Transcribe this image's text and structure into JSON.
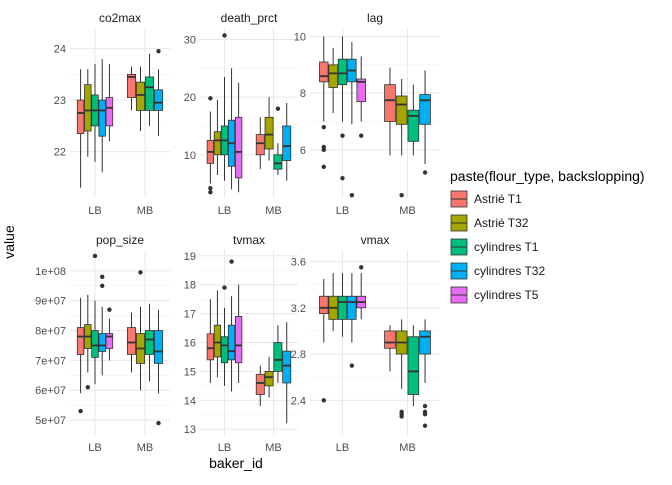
{
  "chart_data": {
    "type": "boxplot",
    "facet_layout": "2 rows x 3 columns, free y scales",
    "xlabel": "baker_id",
    "ylabel": "value",
    "legend": {
      "title": "paste(flour_type, backslopping)",
      "position": "right",
      "entries": [
        {
          "name": "Astrié T1",
          "color": "#F8766D"
        },
        {
          "name": "Astrié T32",
          "color": "#A3A500"
        },
        {
          "name": "cylindres T1",
          "color": "#00BF7D"
        },
        {
          "name": "cylindres T32",
          "color": "#00B0F6"
        },
        {
          "name": "cylindres T5",
          "color": "#E76BF3"
        }
      ]
    },
    "categories": [
      "LB",
      "MB"
    ],
    "panels": [
      {
        "title": "co2max",
        "ylim": [
          21.1,
          24.4
        ],
        "yticks": [
          {
            "v": 22,
            "label": "22"
          },
          {
            "v": 23,
            "label": "23"
          },
          {
            "v": 24,
            "label": "24"
          }
        ],
        "groups": [
          {
            "category": "LB",
            "boxes": [
              {
                "series": 0,
                "min": 21.3,
                "q1": 22.35,
                "median": 22.75,
                "q3": 23.0,
                "max": 23.6,
                "outliers": []
              },
              {
                "series": 1,
                "min": 21.9,
                "q1": 22.4,
                "median": 22.8,
                "q3": 23.3,
                "max": 23.6,
                "outliers": []
              },
              {
                "series": 2,
                "min": 21.8,
                "q1": 22.5,
                "median": 22.8,
                "q3": 23.1,
                "max": 23.7,
                "outliers": []
              },
              {
                "series": 3,
                "min": 21.6,
                "q1": 22.3,
                "median": 22.8,
                "q3": 23.0,
                "max": 23.8,
                "outliers": []
              },
              {
                "series": 4,
                "min": 22.2,
                "q1": 22.5,
                "median": 22.85,
                "q3": 23.05,
                "max": 23.7,
                "outliers": []
              }
            ]
          },
          {
            "category": "MB",
            "boxes": [
              {
                "series": 0,
                "min": 22.8,
                "q1": 23.05,
                "median": 23.45,
                "q3": 23.5,
                "max": 23.65,
                "outliers": []
              },
              {
                "series": 1,
                "min": 22.4,
                "q1": 22.8,
                "median": 23.1,
                "q3": 23.35,
                "max": 23.65,
                "outliers": []
              },
              {
                "series": 2,
                "min": 22.5,
                "q1": 22.8,
                "median": 23.25,
                "q3": 23.45,
                "max": 23.9,
                "outliers": []
              },
              {
                "series": 3,
                "min": 22.3,
                "q1": 22.8,
                "median": 22.95,
                "q3": 23.2,
                "max": 23.6,
                "outliers": [
                  23.95
                ]
              }
            ]
          }
        ]
      },
      {
        "title": "death_prct",
        "ylim": [
          2.5,
          32
        ],
        "yticks": [
          {
            "v": 10,
            "label": "10"
          },
          {
            "v": 20,
            "label": "20"
          },
          {
            "v": 30,
            "label": "30"
          }
        ],
        "groups": [
          {
            "category": "LB",
            "boxes": [
              {
                "series": 0,
                "min": 5.0,
                "q1": 8.5,
                "median": 10.5,
                "q3": 12.5,
                "max": 17.5,
                "outliers": [
                  4.2,
                  3.5,
                  19.8
                ]
              },
              {
                "series": 1,
                "min": 6.5,
                "q1": 10.0,
                "median": 12.5,
                "q3": 14.0,
                "max": 19.5,
                "outliers": []
              },
              {
                "series": 2,
                "min": 5.5,
                "q1": 10.0,
                "median": 12.5,
                "q3": 15.0,
                "max": 23.5,
                "outliers": [
                  30.7
                ]
              },
              {
                "series": 3,
                "min": 4.0,
                "q1": 8.0,
                "median": 12.0,
                "q3": 16.0,
                "max": 25.0,
                "outliers": []
              },
              {
                "series": 4,
                "min": 3.5,
                "q1": 6.0,
                "median": 10.5,
                "q3": 16.5,
                "max": 22.5,
                "outliers": []
              }
            ]
          },
          {
            "category": "MB",
            "boxes": [
              {
                "series": 0,
                "min": 7.5,
                "q1": 10.0,
                "median": 12.0,
                "q3": 13.5,
                "max": 16.5,
                "outliers": []
              },
              {
                "series": 1,
                "min": 9.0,
                "q1": 11.0,
                "median": 13.5,
                "q3": 16.5,
                "max": 20.0,
                "outliers": []
              },
              {
                "series": 2,
                "min": 6.5,
                "q1": 7.5,
                "median": 8.5,
                "q3": 10.0,
                "max": 12.0,
                "outliers": [
                  18.0
                ]
              },
              {
                "series": 3,
                "min": 5.5,
                "q1": 9.0,
                "median": 11.5,
                "q3": 15.0,
                "max": 19.0,
                "outliers": []
              }
            ]
          }
        ]
      },
      {
        "title": "lag",
        "ylim": [
          4.3,
          10.3
        ],
        "yticks": [
          {
            "v": 6,
            "label": "6"
          },
          {
            "v": 8,
            "label": "8"
          },
          {
            "v": 10,
            "label": "10"
          }
        ],
        "groups": [
          {
            "category": "LB",
            "boxes": [
              {
                "series": 0,
                "min": 7.0,
                "q1": 8.4,
                "median": 8.6,
                "q3": 9.1,
                "max": 10.0,
                "outliers": [
                  6.8,
                  6.1,
                  6.0,
                  5.4
                ]
              },
              {
                "series": 1,
                "min": 7.3,
                "q1": 8.2,
                "median": 8.7,
                "q3": 9.0,
                "max": 9.6,
                "outliers": []
              },
              {
                "series": 2,
                "min": 7.0,
                "q1": 8.3,
                "median": 8.7,
                "q3": 9.2,
                "max": 10.0,
                "outliers": [
                  6.5,
                  5.0
                ]
              },
              {
                "series": 3,
                "min": 6.9,
                "q1": 8.4,
                "median": 8.8,
                "q3": 9.2,
                "max": 9.8,
                "outliers": [
                  4.4
                ]
              },
              {
                "series": 4,
                "min": 7.0,
                "q1": 7.7,
                "median": 8.4,
                "q3": 8.5,
                "max": 9.3,
                "outliers": [
                  6.5
                ]
              }
            ]
          },
          {
            "category": "MB",
            "boxes": [
              {
                "series": 0,
                "min": 5.8,
                "q1": 7.0,
                "median": 7.75,
                "q3": 8.3,
                "max": 8.9,
                "outliers": []
              },
              {
                "series": 1,
                "min": 5.8,
                "q1": 6.9,
                "median": 7.6,
                "q3": 7.9,
                "max": 8.5,
                "outliers": [
                  4.4
                ]
              },
              {
                "series": 2,
                "min": 5.8,
                "q1": 6.3,
                "median": 7.2,
                "q3": 7.4,
                "max": 8.3,
                "outliers": []
              },
              {
                "series": 3,
                "min": 5.5,
                "q1": 6.9,
                "median": 7.75,
                "q3": 7.95,
                "max": 8.8,
                "outliers": [
                  5.2
                ]
              }
            ]
          }
        ]
      },
      {
        "title": "pop_size",
        "ylim": [
          45000000,
          107000000
        ],
        "yticks": [
          {
            "v": 50000000,
            "label": "5e+07"
          },
          {
            "v": 60000000,
            "label": "6e+07"
          },
          {
            "v": 70000000,
            "label": "7e+07"
          },
          {
            "v": 80000000,
            "label": "8e+07"
          },
          {
            "v": 90000000,
            "label": "9e+07"
          },
          {
            "v": 100000000,
            "label": "1e+08"
          }
        ],
        "groups": [
          {
            "category": "LB",
            "boxes": [
              {
                "series": 0,
                "min": 59000000,
                "q1": 72000000,
                "median": 78000000,
                "q3": 81000000,
                "max": 91000000,
                "outliers": [
                  53000000
                ]
              },
              {
                "series": 1,
                "min": 66000000,
                "q1": 74000000,
                "median": 78000000,
                "q3": 82000000,
                "max": 92000000,
                "outliers": [
                  61000000
                ]
              },
              {
                "series": 2,
                "min": 62000000,
                "q1": 71000000,
                "median": 75000000,
                "q3": 80000000,
                "max": 90000000,
                "outliers": [
                  105000000
                ]
              },
              {
                "series": 3,
                "min": 65000000,
                "q1": 73000000,
                "median": 75000000,
                "q3": 79000000,
                "max": 88000000,
                "outliers": [
                  98000000,
                  95000000
                ]
              },
              {
                "series": 4,
                "min": 70000000,
                "q1": 74000000,
                "median": 78000000,
                "q3": 79000000,
                "max": 84000000,
                "outliers": [
                  87000000
                ]
              }
            ]
          },
          {
            "category": "MB",
            "boxes": [
              {
                "series": 0,
                "min": 66000000,
                "q1": 72000000,
                "median": 76000000,
                "q3": 81000000,
                "max": 86000000,
                "outliers": []
              },
              {
                "series": 1,
                "min": 60000000,
                "q1": 69000000,
                "median": 74000000,
                "q3": 79000000,
                "max": 88000000,
                "outliers": [
                  99500000
                ]
              },
              {
                "series": 2,
                "min": 63000000,
                "q1": 72000000,
                "median": 77000000,
                "q3": 80000000,
                "max": 89000000,
                "outliers": []
              },
              {
                "series": 3,
                "min": 59000000,
                "q1": 69000000,
                "median": 73000000,
                "q3": 80000000,
                "max": 87000000,
                "outliers": [
                  49000000
                ]
              }
            ]
          }
        ]
      },
      {
        "title": "tvmax",
        "ylim": [
          12.8,
          19.2
        ],
        "yticks": [
          {
            "v": 13,
            "label": "13"
          },
          {
            "v": 14,
            "label": "14"
          },
          {
            "v": 15,
            "label": "15"
          },
          {
            "v": 16,
            "label": "16"
          },
          {
            "v": 17,
            "label": "17"
          },
          {
            "v": 18,
            "label": "18"
          },
          {
            "v": 19,
            "label": "19"
          }
        ],
        "groups": [
          {
            "category": "LB",
            "boxes": [
              {
                "series": 0,
                "min": 14.6,
                "q1": 15.4,
                "median": 15.8,
                "q3": 16.3,
                "max": 17.5,
                "outliers": []
              },
              {
                "series": 1,
                "min": 14.8,
                "q1": 15.5,
                "median": 16.0,
                "q3": 16.6,
                "max": 17.8,
                "outliers": []
              },
              {
                "series": 2,
                "min": 14.5,
                "q1": 15.3,
                "median": 15.9,
                "q3": 16.2,
                "max": 17.2,
                "outliers": [
                  17.9
                ]
              },
              {
                "series": 3,
                "min": 14.3,
                "q1": 15.4,
                "median": 15.7,
                "q3": 16.6,
                "max": 17.6,
                "outliers": [
                  18.8
                ]
              },
              {
                "series": 4,
                "min": 14.6,
                "q1": 15.3,
                "median": 15.9,
                "q3": 16.9,
                "max": 18.0,
                "outliers": []
              }
            ]
          },
          {
            "category": "MB",
            "boxes": [
              {
                "series": 0,
                "min": 13.8,
                "q1": 14.2,
                "median": 14.6,
                "q3": 14.9,
                "max": 15.2,
                "outliers": []
              },
              {
                "series": 1,
                "min": 14.1,
                "q1": 14.5,
                "median": 14.8,
                "q3": 15.0,
                "max": 15.5,
                "outliers": []
              },
              {
                "series": 2,
                "min": 14.6,
                "q1": 15.0,
                "median": 15.4,
                "q3": 16.0,
                "max": 16.6,
                "outliers": []
              },
              {
                "series": 3,
                "min": 13.2,
                "q1": 14.6,
                "median": 15.2,
                "q3": 15.7,
                "max": 16.7,
                "outliers": []
              }
            ]
          }
        ]
      },
      {
        "title": "vmax",
        "ylim": [
          2.1,
          3.7
        ],
        "yticks": [
          {
            "v": 2.4,
            "label": "2.4"
          },
          {
            "v": 2.8,
            "label": "2.8"
          },
          {
            "v": 3.2,
            "label": "3.2"
          },
          {
            "v": 3.6,
            "label": "3.6"
          }
        ],
        "groups": [
          {
            "category": "LB",
            "boxes": [
              {
                "series": 0,
                "min": 2.9,
                "q1": 3.15,
                "median": 3.2,
                "q3": 3.3,
                "max": 3.45,
                "outliers": [
                  2.4
                ]
              },
              {
                "series": 1,
                "min": 3.0,
                "q1": 3.1,
                "median": 3.2,
                "q3": 3.3,
                "max": 3.5,
                "outliers": []
              },
              {
                "series": 2,
                "min": 2.95,
                "q1": 3.1,
                "median": 3.25,
                "q3": 3.3,
                "max": 3.5,
                "outliers": []
              },
              {
                "series": 3,
                "min": 2.9,
                "q1": 3.1,
                "median": 3.25,
                "q3": 3.3,
                "max": 3.5,
                "outliers": [
                  2.7
                ]
              },
              {
                "series": 4,
                "min": 3.1,
                "q1": 3.2,
                "median": 3.25,
                "q3": 3.3,
                "max": 3.5,
                "outliers": [
                  3.55
                ]
              }
            ]
          },
          {
            "category": "MB",
            "boxes": [
              {
                "series": 0,
                "min": 2.65,
                "q1": 2.85,
                "median": 2.9,
                "q3": 3.0,
                "max": 3.05,
                "outliers": []
              },
              {
                "series": 1,
                "min": 2.5,
                "q1": 2.8,
                "median": 2.9,
                "q3": 3.0,
                "max": 3.1,
                "outliers": [
                  2.3,
                  2.28,
                  2.26
                ]
              },
              {
                "series": 2,
                "min": 2.35,
                "q1": 2.45,
                "median": 2.65,
                "q3": 2.95,
                "max": 3.05,
                "outliers": []
              },
              {
                "series": 3,
                "min": 2.55,
                "q1": 2.8,
                "median": 2.95,
                "q3": 3.0,
                "max": 3.1,
                "outliers": [
                  2.35,
                  2.3,
                  2.28,
                  2.18
                ]
              }
            ]
          }
        ]
      }
    ]
  }
}
